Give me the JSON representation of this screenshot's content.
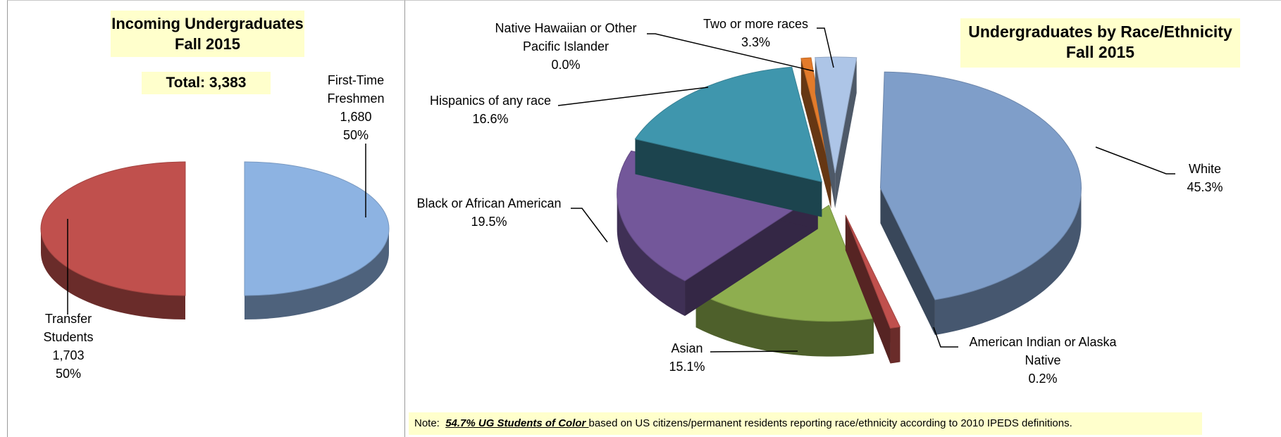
{
  "chart_data": [
    {
      "type": "pie",
      "title": "Incoming Undergraduates",
      "subtitle": "Fall 2015",
      "total_label": "Total: 3,383",
      "slices": [
        {
          "label": "First-Time Freshmen",
          "label_lines": [
            "First-Time",
            "Freshmen"
          ],
          "value": 1680,
          "value_text": "1,680",
          "percent": 50,
          "percent_text": "50%",
          "color": "#8db3e2"
        },
        {
          "label": "Transfer Students",
          "label_lines": [
            "Transfer",
            "Students"
          ],
          "value": 1703,
          "value_text": "1,703",
          "percent": 50,
          "percent_text": "50%",
          "color": "#c0504d"
        }
      ]
    },
    {
      "type": "pie",
      "title": "Undergraduates by Race/Ethnicity",
      "subtitle": "Fall 2015",
      "slices": [
        {
          "label": "White",
          "label_lines": [
            "White"
          ],
          "percent": 45.3,
          "percent_text": "45.3%",
          "color": "#7f9ec9"
        },
        {
          "label": "American Indian or Alaska Native",
          "label_lines": [
            "American Indian or Alaska",
            "Native"
          ],
          "percent": 0.2,
          "percent_text": "0.2%",
          "color": "#c0504d"
        },
        {
          "label": "Asian",
          "label_lines": [
            "Asian"
          ],
          "percent": 15.1,
          "percent_text": "15.1%",
          "color": "#8eae4f"
        },
        {
          "label": "Black or African American",
          "label_lines": [
            "Black or African American"
          ],
          "percent": 19.5,
          "percent_text": "19.5%",
          "color": "#73579a"
        },
        {
          "label": "Hispanics of any race",
          "label_lines": [
            "Hispanics of any race"
          ],
          "percent": 16.6,
          "percent_text": "16.6%",
          "color": "#3f96ad"
        },
        {
          "label": "Native Hawaiian or Other Pacific Islander",
          "label_lines": [
            "Native Hawaiian or Other",
            "Pacific Islander"
          ],
          "percent": 0.0,
          "percent_text": "0.0%",
          "color": "#e37b2b"
        },
        {
          "label": "Two or more races",
          "label_lines": [
            "Two or more races"
          ],
          "percent": 3.3,
          "percent_text": "3.3%",
          "color": "#adc5e7"
        }
      ]
    }
  ],
  "note": {
    "prefix": "Note:  ",
    "emphasis": "54.7% UG Students of Color ",
    "suffix": "based on US citizens/permanent residents reporting race/ethnicity according to 2010 IPEDS definitions."
  }
}
